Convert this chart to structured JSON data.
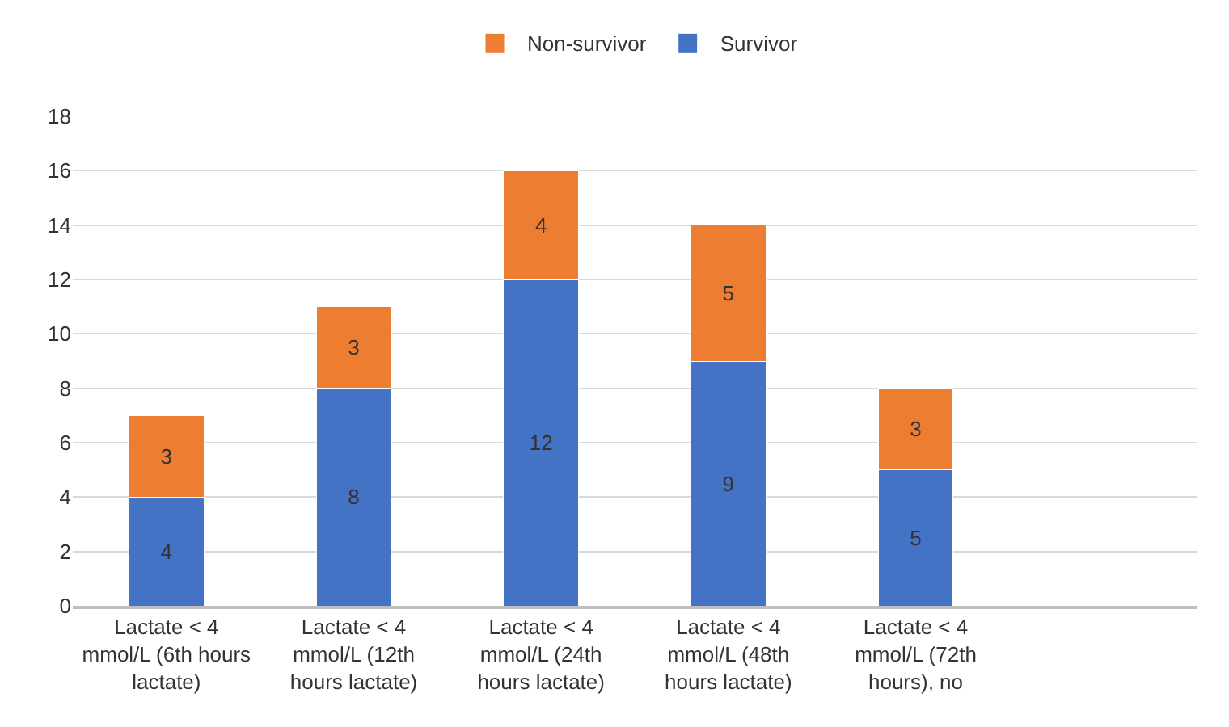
{
  "chart_data": {
    "type": "bar",
    "stacked": true,
    "categories": [
      "Lactate < 4 mmol/L (6th hours lactate)",
      "Lactate < 4 mmol/L (12th hours lactate)",
      "Lactate < 4 mmol/L (24th hours lactate)",
      "Lactate < 4 mmol/L (48th hours lactate)",
      "Lactate < 4 mmol/L (72th hours), no",
      null
    ],
    "series": [
      {
        "name": "Survivor",
        "color": "#4472c4",
        "values": [
          4,
          8,
          12,
          9,
          5,
          null
        ]
      },
      {
        "name": "Non-survivor",
        "color": "#ed7d31",
        "values": [
          3,
          3,
          4,
          5,
          3,
          null
        ]
      }
    ],
    "ylim": [
      0,
      18
    ],
    "yticks": [
      0,
      2,
      4,
      6,
      8,
      10,
      12,
      14,
      16,
      18
    ],
    "grid": "y",
    "legend": "top",
    "data_labels": true
  }
}
